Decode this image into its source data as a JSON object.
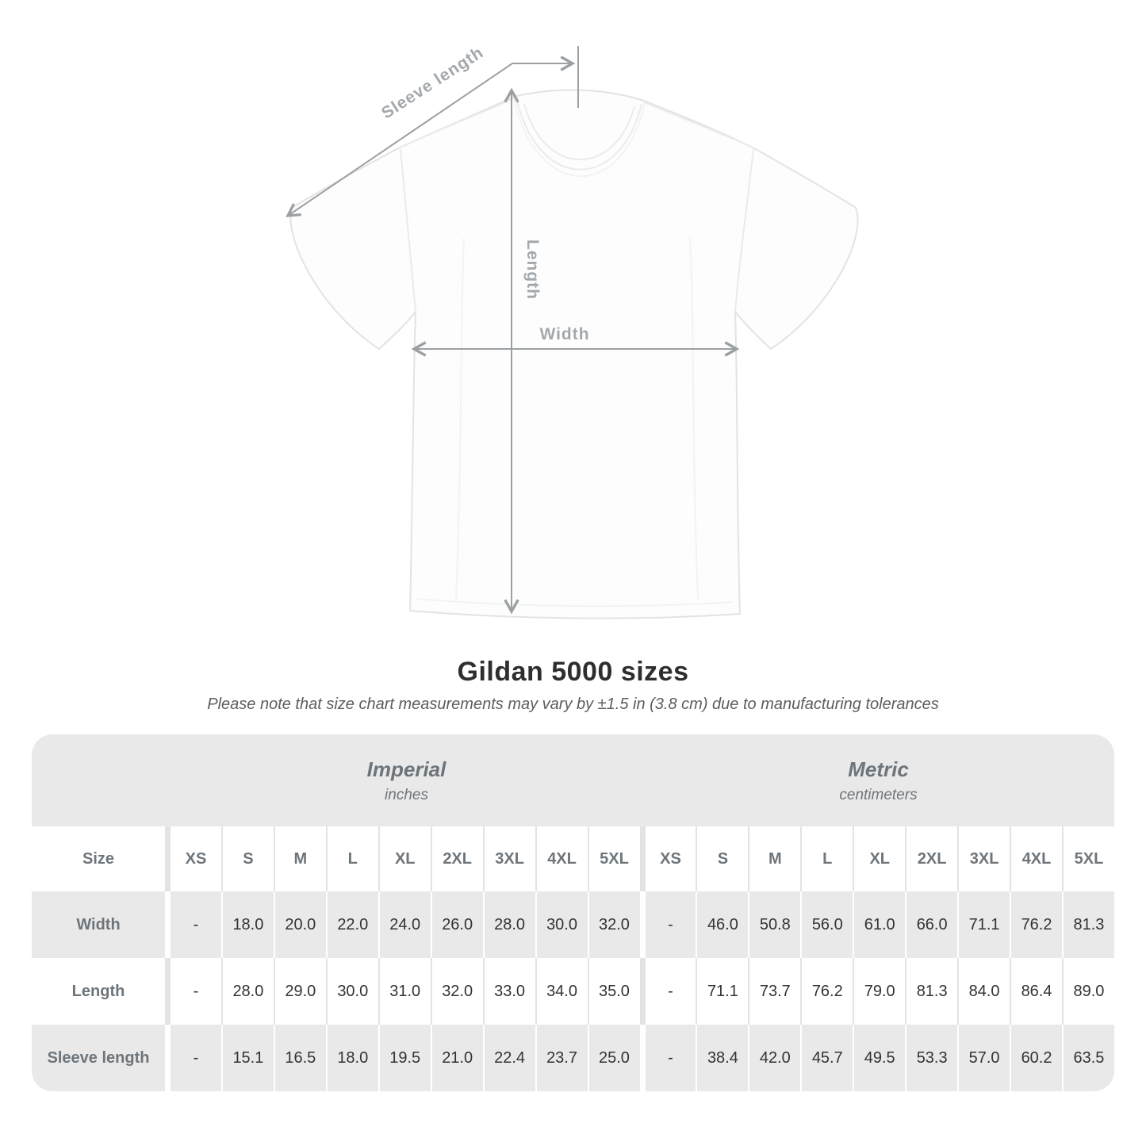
{
  "diagram": {
    "labels": {
      "sleeve_length": "Sleeve length",
      "length": "Length",
      "width": "Width"
    },
    "line_color": "#9aa0a3",
    "label_color": "#a3a8ac"
  },
  "title": "Gildan 5000 sizes",
  "subtitle": "Please note that size chart measurements may vary by ±1.5 in (3.8 cm) due to manufacturing tolerances",
  "table": {
    "sections": [
      {
        "label": "Imperial",
        "sublabel": "inches"
      },
      {
        "label": "Metric",
        "sublabel": "centimeters"
      }
    ],
    "size_header": "Size",
    "sizes": [
      "XS",
      "S",
      "M",
      "L",
      "XL",
      "2XL",
      "3XL",
      "4XL",
      "5XL"
    ],
    "rows": [
      {
        "label": "Width",
        "imperial": [
          "-",
          "18.0",
          "20.0",
          "22.0",
          "24.0",
          "26.0",
          "28.0",
          "30.0",
          "32.0"
        ],
        "metric": [
          "-",
          "46.0",
          "50.8",
          "56.0",
          "61.0",
          "66.0",
          "71.1",
          "76.2",
          "81.3"
        ]
      },
      {
        "label": "Length",
        "imperial": [
          "-",
          "28.0",
          "29.0",
          "30.0",
          "31.0",
          "32.0",
          "33.0",
          "34.0",
          "35.0"
        ],
        "metric": [
          "-",
          "71.1",
          "73.7",
          "76.2",
          "79.0",
          "81.3",
          "84.0",
          "86.4",
          "89.0"
        ]
      },
      {
        "label": "Sleeve length",
        "imperial": [
          "-",
          "15.1",
          "16.5",
          "18.0",
          "19.5",
          "21.0",
          "22.4",
          "23.7",
          "25.0"
        ],
        "metric": [
          "-",
          "38.4",
          "42.0",
          "45.7",
          "49.5",
          "53.3",
          "57.0",
          "60.2",
          "63.5"
        ]
      }
    ],
    "colors": {
      "band_bg": "#e9e9e9",
      "row_alt_bg": "#e9e9e9",
      "row_bg": "#ffffff",
      "header_text": "#6d757b",
      "value_text": "#333333"
    }
  }
}
